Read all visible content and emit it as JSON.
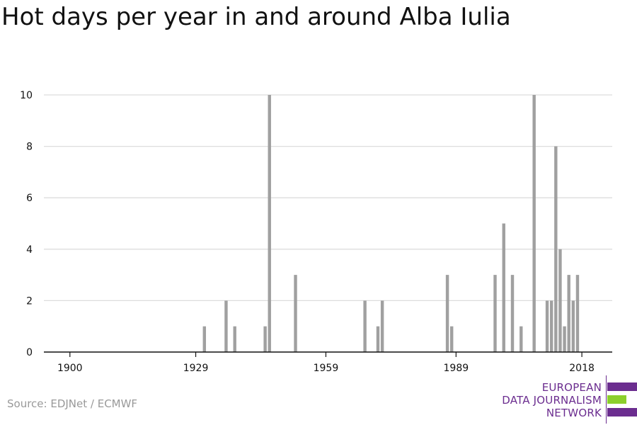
{
  "title": "Hot days per year in and around Alba Iulia",
  "source": "Source: EDJNet / ECMWF",
  "logo": {
    "line1": "EUROPEAN",
    "line2": "DATA JOURNALISM",
    "line3": "NETWORK"
  },
  "colors": {
    "bar": "#a0a0a0",
    "grid": "#dddddd",
    "axis": "#111111",
    "logo_purple": "#6b2d8f",
    "logo_green": "#8ccf2c"
  },
  "chart_data": {
    "type": "bar",
    "title": "Hot days per year in and around Alba Iulia",
    "xlabel": "",
    "ylabel": "",
    "xlim": [
      1894,
      2025
    ],
    "ylim": [
      0,
      10
    ],
    "grid": true,
    "x_ticks": [
      1900,
      1929,
      1959,
      1989,
      2018
    ],
    "y_ticks": [
      0,
      2,
      4,
      6,
      8,
      10
    ],
    "x": [
      1931,
      1936,
      1938,
      1945,
      1946,
      1952,
      1968,
      1971,
      1972,
      1987,
      1988,
      1998,
      2000,
      2002,
      2004,
      2007,
      2010,
      2011,
      2012,
      2013,
      2014,
      2015,
      2016,
      2017,
      2018
    ],
    "values": [
      1,
      2,
      1,
      1,
      10,
      3,
      2,
      1,
      2,
      3,
      1,
      3,
      5,
      3,
      1,
      10,
      2,
      2,
      8,
      4,
      1,
      3,
      2,
      3,
      0
    ]
  }
}
